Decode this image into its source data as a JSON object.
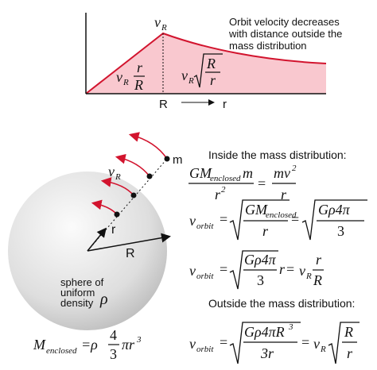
{
  "graph": {
    "peak": {
      "symbol": "v",
      "sub": "R"
    },
    "inner": {
      "symbol": "v",
      "sub": "R",
      "num": "r",
      "den": "R"
    },
    "outer": {
      "symbol": "v",
      "sub": "R",
      "num": "R",
      "den": "r"
    },
    "x_labels": [
      "R",
      "r"
    ],
    "annotation": [
      "Orbit velocity decreases",
      "with distance outside the",
      "mass distribution"
    ]
  },
  "sphere": {
    "mass_label": "m",
    "velocity": {
      "symbol": "v",
      "sub": "R"
    },
    "radius_small": "r",
    "radius_large": "R",
    "description": [
      "sphere of",
      "uniform",
      "density"
    ],
    "density_symbol": "ρ"
  },
  "mass_formula": {
    "lhs": "M",
    "sub": "enclosed",
    "eq": "=ρ",
    "num": "4",
    "den": "3",
    "rest": "πr",
    "exp": "3"
  },
  "inside": {
    "heading": "Inside the mass distribution:",
    "eq1": {
      "num1": "GM",
      "num1_sub": "enclosed",
      "num1_tail": "m",
      "den1": "r",
      "den1_exp": "2",
      "eq": "=",
      "num2": "mv",
      "num2_exp": "2",
      "den2": "r"
    },
    "eq2": {
      "lhs": "v",
      "lhs_sub": "orbit",
      "eq1": "=",
      "num1": "GM",
      "num1_sub": "enclosed",
      "den1": "r",
      "eq2": "=",
      "num2": "Gρ4π",
      "den2": "3"
    },
    "eq3": {
      "lhs": "v",
      "lhs_sub": "orbit",
      "eq1": "=",
      "num1": "Gρ4π",
      "den1": "3",
      "tail": "r",
      "eq2": "=",
      "v": "v",
      "v_sub": "R",
      "num2": "r",
      "den2": "R"
    }
  },
  "outside": {
    "heading": "Outside the mass distribution:",
    "eq4": {
      "lhs": "v",
      "lhs_sub": "orbit",
      "eq1": "=",
      "num1": "Gρ4πR",
      "num1_exp": "3",
      "den1": "3r",
      "eq2": "=",
      "v": "v",
      "v_sub": "R",
      "num2": "R",
      "den2": "r"
    }
  }
}
